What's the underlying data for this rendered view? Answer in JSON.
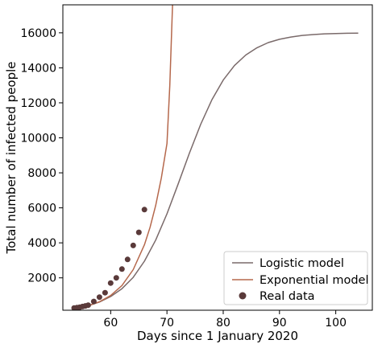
{
  "chart_data": {
    "type": "line",
    "title": "",
    "xlabel": "Days since 1 January 2020",
    "ylabel": "Total number of infected people",
    "xlim": [
      51.5,
      106.5
    ],
    "ylim": [
      150,
      17600
    ],
    "x_ticks": [
      60,
      70,
      80,
      90,
      100
    ],
    "y_ticks": [
      2000,
      4000,
      6000,
      8000,
      10000,
      12000,
      14000,
      16000
    ],
    "grid": false,
    "legend_position": "lower right",
    "series": [
      {
        "name": "Logistic model",
        "kind": "line",
        "color": "#7a6a6a",
        "x": [
          54,
          56,
          58,
          60,
          62,
          64,
          66,
          68,
          70,
          72,
          74,
          76,
          78,
          80,
          82,
          84,
          86,
          88,
          90,
          92,
          94,
          96,
          98,
          100,
          102,
          104
        ],
        "y": [
          270,
          410,
          620,
          930,
          1380,
          2030,
          2950,
          4160,
          5660,
          7370,
          9130,
          10780,
          12180,
          13300,
          14130,
          14730,
          15150,
          15440,
          15630,
          15760,
          15850,
          15900,
          15940,
          15960,
          15975,
          15985
        ]
      },
      {
        "name": "Exponential model",
        "kind": "line",
        "color": "#b5684c",
        "x": [
          54,
          56,
          58,
          60,
          62,
          64,
          66,
          67,
          68,
          69,
          70,
          70.5,
          71
        ],
        "y": [
          250,
          400,
          630,
          990,
          1560,
          2470,
          3890,
          4890,
          6140,
          7710,
          9680,
          13000,
          17600
        ]
      },
      {
        "name": "Real data",
        "kind": "scatter",
        "color": "#5a3a3a",
        "x": [
          53.5,
          54,
          54.5,
          55,
          55.5,
          56,
          57,
          58,
          59,
          60,
          61,
          62,
          63,
          64,
          65,
          66
        ],
        "y": [
          280,
          300,
          320,
          360,
          400,
          440,
          650,
          900,
          1150,
          1700,
          2000,
          2500,
          3050,
          3850,
          4600,
          5900
        ]
      }
    ]
  }
}
